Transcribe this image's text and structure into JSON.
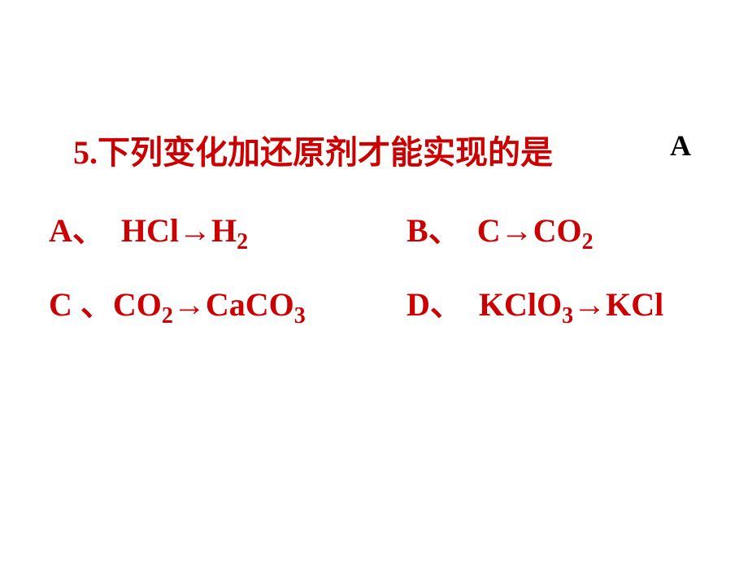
{
  "question": {
    "number": "5.",
    "text": "下列变化加还原剂才能实现的是",
    "answer": "A",
    "colors": {
      "question_text": "#cc0000",
      "answer_text": "#000000",
      "background": "#ffffff"
    },
    "fontsize": {
      "question": 40,
      "options": 40,
      "answer": 36
    }
  },
  "options": {
    "A": {
      "label": "A",
      "punct": "、",
      "from": "HCl",
      "to": "H",
      "to_sub": "2"
    },
    "B": {
      "label": "B",
      "punct": "、",
      "from": "C",
      "to": "CO",
      "to_sub": "2"
    },
    "C": {
      "label": "C",
      "punct": " 、",
      "from_pre": "CO",
      "from_sub": "2",
      "to": "CaCO",
      "to_sub": "3"
    },
    "D": {
      "label": "D",
      "punct": "、",
      "from_pre": "KClO",
      "from_sub": "3",
      "to": "KCl"
    }
  },
  "arrow": "→"
}
